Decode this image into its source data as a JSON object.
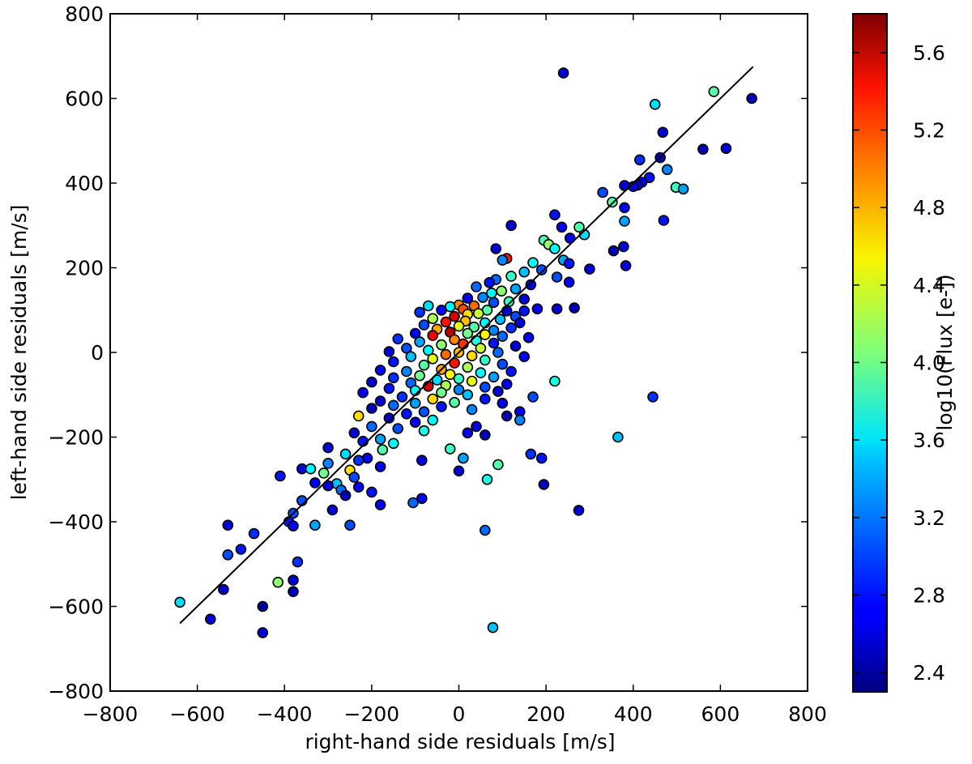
{
  "chart_data": {
    "type": "scatter",
    "title": "",
    "xlabel": "right-hand side residuals [m/s]",
    "ylabel": "left-hand side residuals [m/s]",
    "xlim": [
      -800,
      800
    ],
    "ylim": [
      -800,
      800
    ],
    "xticks": [
      -800,
      -600,
      -400,
      -200,
      0,
      200,
      400,
      600,
      800
    ],
    "yticks": [
      -800,
      -600,
      -400,
      -200,
      0,
      200,
      400,
      600,
      800
    ],
    "xtick_labels": [
      "−800",
      "−600",
      "−400",
      "−200",
      "0",
      "200",
      "400",
      "600",
      "800"
    ],
    "ytick_labels": [
      "−800",
      "−600",
      "−400",
      "−200",
      "0",
      "200",
      "400",
      "600",
      "800"
    ],
    "grid": false,
    "colormap": "jet",
    "colorbar": {
      "label": "log10(Flux [e-])",
      "range": [
        2.3,
        5.8
      ],
      "ticks": [
        2.4,
        2.8,
        3.2,
        3.6,
        4.0,
        4.4,
        4.8,
        5.2,
        5.6
      ],
      "tick_labels": [
        "2.4",
        "2.8",
        "3.2",
        "3.6",
        "4.0",
        "4.4",
        "4.8",
        "5.2",
        "5.6"
      ]
    },
    "fit_line": {
      "x": [
        -640,
        675
      ],
      "y": [
        -640,
        675
      ],
      "color": "#000000"
    },
    "points": [
      {
        "x": 240,
        "y": 660,
        "c": 2.6
      },
      {
        "x": 585,
        "y": 616,
        "c": 3.9
      },
      {
        "x": 672,
        "y": 600,
        "c": 2.5
      },
      {
        "x": 450,
        "y": 586,
        "c": 3.5
      },
      {
        "x": 468,
        "y": 520,
        "c": 2.6
      },
      {
        "x": 560,
        "y": 480,
        "c": 2.5
      },
      {
        "x": 613,
        "y": 482,
        "c": 2.6
      },
      {
        "x": 462,
        "y": 460,
        "c": 2.5
      },
      {
        "x": 415,
        "y": 455,
        "c": 2.9
      },
      {
        "x": 478,
        "y": 432,
        "c": 3.2
      },
      {
        "x": 437,
        "y": 413,
        "c": 2.8
      },
      {
        "x": 420,
        "y": 402,
        "c": 2.7
      },
      {
        "x": 410,
        "y": 395,
        "c": 2.6
      },
      {
        "x": 498,
        "y": 390,
        "c": 3.8
      },
      {
        "x": 515,
        "y": 386,
        "c": 3.3
      },
      {
        "x": 380,
        "y": 394,
        "c": 2.6
      },
      {
        "x": 400,
        "y": 392,
        "c": 2.6
      },
      {
        "x": 330,
        "y": 378,
        "c": 3.0
      },
      {
        "x": 352,
        "y": 355,
        "c": 3.9
      },
      {
        "x": 380,
        "y": 342,
        "c": 2.7
      },
      {
        "x": 220,
        "y": 325,
        "c": 2.8
      },
      {
        "x": 120,
        "y": 300,
        "c": 2.6
      },
      {
        "x": 236,
        "y": 296,
        "c": 2.7
      },
      {
        "x": 276,
        "y": 296,
        "c": 3.9
      },
      {
        "x": 470,
        "y": 312,
        "c": 2.8
      },
      {
        "x": 380,
        "y": 310,
        "c": 3.3
      },
      {
        "x": 288,
        "y": 278,
        "c": 3.5
      },
      {
        "x": 255,
        "y": 270,
        "c": 2.7
      },
      {
        "x": 195,
        "y": 265,
        "c": 3.9
      },
      {
        "x": 206,
        "y": 255,
        "c": 4.1
      },
      {
        "x": 220,
        "y": 245,
        "c": 3.6
      },
      {
        "x": 355,
        "y": 240,
        "c": 2.5
      },
      {
        "x": 378,
        "y": 250,
        "c": 2.6
      },
      {
        "x": 85,
        "y": 245,
        "c": 2.6
      },
      {
        "x": 110,
        "y": 222,
        "c": 5.3
      },
      {
        "x": 100,
        "y": 218,
        "c": 3.2
      },
      {
        "x": 240,
        "y": 218,
        "c": 3.3
      },
      {
        "x": 170,
        "y": 212,
        "c": 3.6
      },
      {
        "x": 253,
        "y": 210,
        "c": 2.8
      },
      {
        "x": 300,
        "y": 197,
        "c": 2.6
      },
      {
        "x": 383,
        "y": 205,
        "c": 2.6
      },
      {
        "x": 190,
        "y": 195,
        "c": 3.0
      },
      {
        "x": 150,
        "y": 190,
        "c": 3.4
      },
      {
        "x": 120,
        "y": 180,
        "c": 3.8
      },
      {
        "x": 225,
        "y": 178,
        "c": 3.0
      },
      {
        "x": 85,
        "y": 172,
        "c": 3.1
      },
      {
        "x": 253,
        "y": 166,
        "c": 2.7
      },
      {
        "x": 70,
        "y": 165,
        "c": 2.8
      },
      {
        "x": 165,
        "y": 160,
        "c": 2.7
      },
      {
        "x": 130,
        "y": 150,
        "c": 3.3
      },
      {
        "x": 40,
        "y": 155,
        "c": 3.1
      },
      {
        "x": 98,
        "y": 145,
        "c": 4.1
      },
      {
        "x": 75,
        "y": 140,
        "c": 3.6
      },
      {
        "x": 55,
        "y": 130,
        "c": 3.2
      },
      {
        "x": 20,
        "y": 128,
        "c": 2.7
      },
      {
        "x": 150,
        "y": 126,
        "c": 2.6
      },
      {
        "x": 115,
        "y": 120,
        "c": 3.8
      },
      {
        "x": 80,
        "y": 118,
        "c": 3.0
      },
      {
        "x": 0,
        "y": 112,
        "c": 4.9
      },
      {
        "x": 35,
        "y": 110,
        "c": 5.0
      },
      {
        "x": -20,
        "y": 108,
        "c": 3.6
      },
      {
        "x": -70,
        "y": 110,
        "c": 3.5
      },
      {
        "x": 10,
        "y": 102,
        "c": 5.1
      },
      {
        "x": -40,
        "y": 100,
        "c": 2.7
      },
      {
        "x": 65,
        "y": 100,
        "c": 3.9
      },
      {
        "x": 110,
        "y": 98,
        "c": 2.6
      },
      {
        "x": 150,
        "y": 98,
        "c": 2.8
      },
      {
        "x": 180,
        "y": 103,
        "c": 2.7
      },
      {
        "x": 225,
        "y": 103,
        "c": 2.6
      },
      {
        "x": 265,
        "y": 105,
        "c": 2.5
      },
      {
        "x": -90,
        "y": 95,
        "c": 2.9
      },
      {
        "x": 20,
        "y": 90,
        "c": 4.6
      },
      {
        "x": 45,
        "y": 92,
        "c": 4.3
      },
      {
        "x": -10,
        "y": 85,
        "c": 5.5
      },
      {
        "x": 130,
        "y": 85,
        "c": 3.0
      },
      {
        "x": -60,
        "y": 80,
        "c": 4.2
      },
      {
        "x": 95,
        "y": 78,
        "c": 3.4
      },
      {
        "x": 15,
        "y": 74,
        "c": 4.7
      },
      {
        "x": -30,
        "y": 72,
        "c": 5.3
      },
      {
        "x": 60,
        "y": 70,
        "c": 3.6
      },
      {
        "x": 140,
        "y": 70,
        "c": 2.6
      },
      {
        "x": -80,
        "y": 65,
        "c": 3.0
      },
      {
        "x": 0,
        "y": 62,
        "c": 4.4
      },
      {
        "x": 35,
        "y": 60,
        "c": 3.9
      },
      {
        "x": 120,
        "y": 58,
        "c": 2.9
      },
      {
        "x": -50,
        "y": 55,
        "c": 4.8
      },
      {
        "x": 80,
        "y": 52,
        "c": 3.2
      },
      {
        "x": -20,
        "y": 48,
        "c": 5.6
      },
      {
        "x": 20,
        "y": 45,
        "c": 4.0
      },
      {
        "x": -100,
        "y": 45,
        "c": 2.7
      },
      {
        "x": 60,
        "y": 42,
        "c": 4.5
      },
      {
        "x": -60,
        "y": 40,
        "c": 5.4
      },
      {
        "x": 100,
        "y": 38,
        "c": 3.1
      },
      {
        "x": 160,
        "y": 35,
        "c": 2.7
      },
      {
        "x": -140,
        "y": 32,
        "c": 2.9
      },
      {
        "x": -10,
        "y": 30,
        "c": 4.9
      },
      {
        "x": 40,
        "y": 28,
        "c": 3.7
      },
      {
        "x": -90,
        "y": 25,
        "c": 3.3
      },
      {
        "x": 80,
        "y": 22,
        "c": 2.8
      },
      {
        "x": 10,
        "y": 20,
        "c": 5.2
      },
      {
        "x": -40,
        "y": 18,
        "c": 4.1
      },
      {
        "x": 130,
        "y": 15,
        "c": 2.6
      },
      {
        "x": -120,
        "y": 10,
        "c": 3.0
      },
      {
        "x": 50,
        "y": 10,
        "c": 4.3
      },
      {
        "x": -70,
        "y": 5,
        "c": 3.6
      },
      {
        "x": -160,
        "y": 2,
        "c": 2.6
      },
      {
        "x": 0,
        "y": 0,
        "c": 4.7
      },
      {
        "x": 90,
        "y": 0,
        "c": 3.1
      },
      {
        "x": -30,
        "y": -5,
        "c": 5.0
      },
      {
        "x": 30,
        "y": -8,
        "c": 4.6
      },
      {
        "x": -110,
        "y": -10,
        "c": 3.4
      },
      {
        "x": 150,
        "y": -10,
        "c": 2.7
      },
      {
        "x": -60,
        "y": -15,
        "c": 4.4
      },
      {
        "x": 60,
        "y": -18,
        "c": 3.8
      },
      {
        "x": -150,
        "y": -22,
        "c": 2.8
      },
      {
        "x": -10,
        "y": -25,
        "c": 5.3
      },
      {
        "x": 100,
        "y": -28,
        "c": 3.0
      },
      {
        "x": -80,
        "y": -30,
        "c": 3.9
      },
      {
        "x": 20,
        "y": -35,
        "c": 4.2
      },
      {
        "x": -40,
        "y": -40,
        "c": 4.8
      },
      {
        "x": -180,
        "y": -42,
        "c": 2.7
      },
      {
        "x": -120,
        "y": -45,
        "c": 3.2
      },
      {
        "x": 120,
        "y": -45,
        "c": 2.8
      },
      {
        "x": 50,
        "y": -48,
        "c": 3.6
      },
      {
        "x": -20,
        "y": -52,
        "c": 4.5
      },
      {
        "x": -90,
        "y": -55,
        "c": 4.0
      },
      {
        "x": 80,
        "y": -58,
        "c": 3.3
      },
      {
        "x": -150,
        "y": -60,
        "c": 2.9
      },
      {
        "x": 0,
        "y": -62,
        "c": 3.8
      },
      {
        "x": 220,
        "y": -68,
        "c": 3.7
      },
      {
        "x": -50,
        "y": -65,
        "c": 3.5
      },
      {
        "x": 30,
        "y": -68,
        "c": 4.4
      },
      {
        "x": -200,
        "y": -70,
        "c": 2.6
      },
      {
        "x": -110,
        "y": -72,
        "c": 3.1
      },
      {
        "x": 110,
        "y": -75,
        "c": 2.7
      },
      {
        "x": -30,
        "y": -78,
        "c": 4.2
      },
      {
        "x": -70,
        "y": -80,
        "c": 5.5
      },
      {
        "x": 60,
        "y": -82,
        "c": 3.0
      },
      {
        "x": -160,
        "y": -85,
        "c": 2.8
      },
      {
        "x": 0,
        "y": -88,
        "c": 3.2
      },
      {
        "x": -100,
        "y": -90,
        "c": 3.6
      },
      {
        "x": 90,
        "y": -92,
        "c": 2.6
      },
      {
        "x": -40,
        "y": -95,
        "c": 4.0
      },
      {
        "x": -220,
        "y": -95,
        "c": 2.7
      },
      {
        "x": 20,
        "y": -100,
        "c": 3.4
      },
      {
        "x": 170,
        "y": -105,
        "c": 3.0
      },
      {
        "x": 445,
        "y": -105,
        "c": 2.9
      },
      {
        "x": -130,
        "y": -105,
        "c": 2.9
      },
      {
        "x": -60,
        "y": -110,
        "c": 4.6
      },
      {
        "x": 60,
        "y": -110,
        "c": 2.8
      },
      {
        "x": -180,
        "y": -115,
        "c": 2.6
      },
      {
        "x": -10,
        "y": -118,
        "c": 3.9
      },
      {
        "x": -100,
        "y": -120,
        "c": 3.3
      },
      {
        "x": 100,
        "y": -120,
        "c": 2.7
      },
      {
        "x": -150,
        "y": -125,
        "c": 3.1
      },
      {
        "x": -40,
        "y": -128,
        "c": 2.8
      },
      {
        "x": -200,
        "y": -132,
        "c": 2.5
      },
      {
        "x": 30,
        "y": -135,
        "c": 3.2
      },
      {
        "x": -80,
        "y": -140,
        "c": 3.0
      },
      {
        "x": 140,
        "y": -140,
        "c": 2.7
      },
      {
        "x": -120,
        "y": -145,
        "c": 2.8
      },
      {
        "x": -230,
        "y": -150,
        "c": 4.6
      },
      {
        "x": -160,
        "y": -155,
        "c": 2.6
      },
      {
        "x": 110,
        "y": -150,
        "c": 2.5
      },
      {
        "x": -60,
        "y": -160,
        "c": 3.6
      },
      {
        "x": 140,
        "y": -160,
        "c": 3.2
      },
      {
        "x": -100,
        "y": -165,
        "c": 2.7
      },
      {
        "x": -200,
        "y": -175,
        "c": 3.1
      },
      {
        "x": 40,
        "y": -175,
        "c": 2.6
      },
      {
        "x": -140,
        "y": -180,
        "c": 3.0
      },
      {
        "x": -80,
        "y": -185,
        "c": 3.7
      },
      {
        "x": -240,
        "y": -190,
        "c": 2.6
      },
      {
        "x": 20,
        "y": -190,
        "c": 2.7
      },
      {
        "x": 60,
        "y": -195,
        "c": 2.5
      },
      {
        "x": 365,
        "y": -200,
        "c": 3.4
      },
      {
        "x": -180,
        "y": -205,
        "c": 3.3
      },
      {
        "x": -220,
        "y": -210,
        "c": 2.8
      },
      {
        "x": -150,
        "y": -215,
        "c": 3.6
      },
      {
        "x": -300,
        "y": -225,
        "c": 2.6
      },
      {
        "x": -20,
        "y": -228,
        "c": 3.8
      },
      {
        "x": -175,
        "y": -230,
        "c": 3.9
      },
      {
        "x": -260,
        "y": -240,
        "c": 3.5
      },
      {
        "x": 165,
        "y": -240,
        "c": 2.9
      },
      {
        "x": 190,
        "y": -250,
        "c": 2.8
      },
      {
        "x": -210,
        "y": -250,
        "c": 2.7
      },
      {
        "x": 10,
        "y": -250,
        "c": 3.3
      },
      {
        "x": -85,
        "y": -255,
        "c": 2.6
      },
      {
        "x": -230,
        "y": -255,
        "c": 2.9
      },
      {
        "x": -300,
        "y": -262,
        "c": 3.2
      },
      {
        "x": 90,
        "y": -265,
        "c": 3.9
      },
      {
        "x": -180,
        "y": -270,
        "c": 2.7
      },
      {
        "x": -360,
        "y": -275,
        "c": 2.6
      },
      {
        "x": -340,
        "y": -275,
        "c": 3.6
      },
      {
        "x": -250,
        "y": -278,
        "c": 4.6
      },
      {
        "x": 0,
        "y": -280,
        "c": 2.6
      },
      {
        "x": -310,
        "y": -285,
        "c": 4.0
      },
      {
        "x": -410,
        "y": -292,
        "c": 2.8
      },
      {
        "x": -240,
        "y": -295,
        "c": 3.0
      },
      {
        "x": 65,
        "y": -300,
        "c": 3.7
      },
      {
        "x": -330,
        "y": -308,
        "c": 2.7
      },
      {
        "x": -280,
        "y": -310,
        "c": 3.4
      },
      {
        "x": 195,
        "y": -312,
        "c": 2.5
      },
      {
        "x": -300,
        "y": -315,
        "c": 2.6
      },
      {
        "x": -230,
        "y": -318,
        "c": 2.7
      },
      {
        "x": -270,
        "y": -325,
        "c": 3.1
      },
      {
        "x": -200,
        "y": -330,
        "c": 2.8
      },
      {
        "x": -260,
        "y": -338,
        "c": 2.5
      },
      {
        "x": -360,
        "y": -350,
        "c": 3.0
      },
      {
        "x": -85,
        "y": -345,
        "c": 2.7
      },
      {
        "x": -105,
        "y": -355,
        "c": 3.1
      },
      {
        "x": -180,
        "y": -360,
        "c": 2.7
      },
      {
        "x": -290,
        "y": -372,
        "c": 2.6
      },
      {
        "x": 275,
        "y": -373,
        "c": 2.6
      },
      {
        "x": -380,
        "y": -380,
        "c": 3.0
      },
      {
        "x": -390,
        "y": -400,
        "c": 2.8
      },
      {
        "x": -330,
        "y": -408,
        "c": 3.3
      },
      {
        "x": -250,
        "y": -408,
        "c": 3.0
      },
      {
        "x": -380,
        "y": -410,
        "c": 2.7
      },
      {
        "x": -530,
        "y": -408,
        "c": 2.6
      },
      {
        "x": 60,
        "y": -420,
        "c": 3.1
      },
      {
        "x": -470,
        "y": -428,
        "c": 2.9
      },
      {
        "x": -500,
        "y": -465,
        "c": 2.8
      },
      {
        "x": -530,
        "y": -478,
        "c": 3.0
      },
      {
        "x": -370,
        "y": -495,
        "c": 2.9
      },
      {
        "x": -380,
        "y": -538,
        "c": 2.6
      },
      {
        "x": -415,
        "y": -543,
        "c": 4.1
      },
      {
        "x": -540,
        "y": -560,
        "c": 2.6
      },
      {
        "x": -380,
        "y": -565,
        "c": 2.5
      },
      {
        "x": -640,
        "y": -590,
        "c": 3.5
      },
      {
        "x": -450,
        "y": -600,
        "c": 2.4
      },
      {
        "x": -570,
        "y": -630,
        "c": 2.6
      },
      {
        "x": 78,
        "y": -650,
        "c": 3.4
      },
      {
        "x": -450,
        "y": -662,
        "c": 2.6
      }
    ]
  }
}
